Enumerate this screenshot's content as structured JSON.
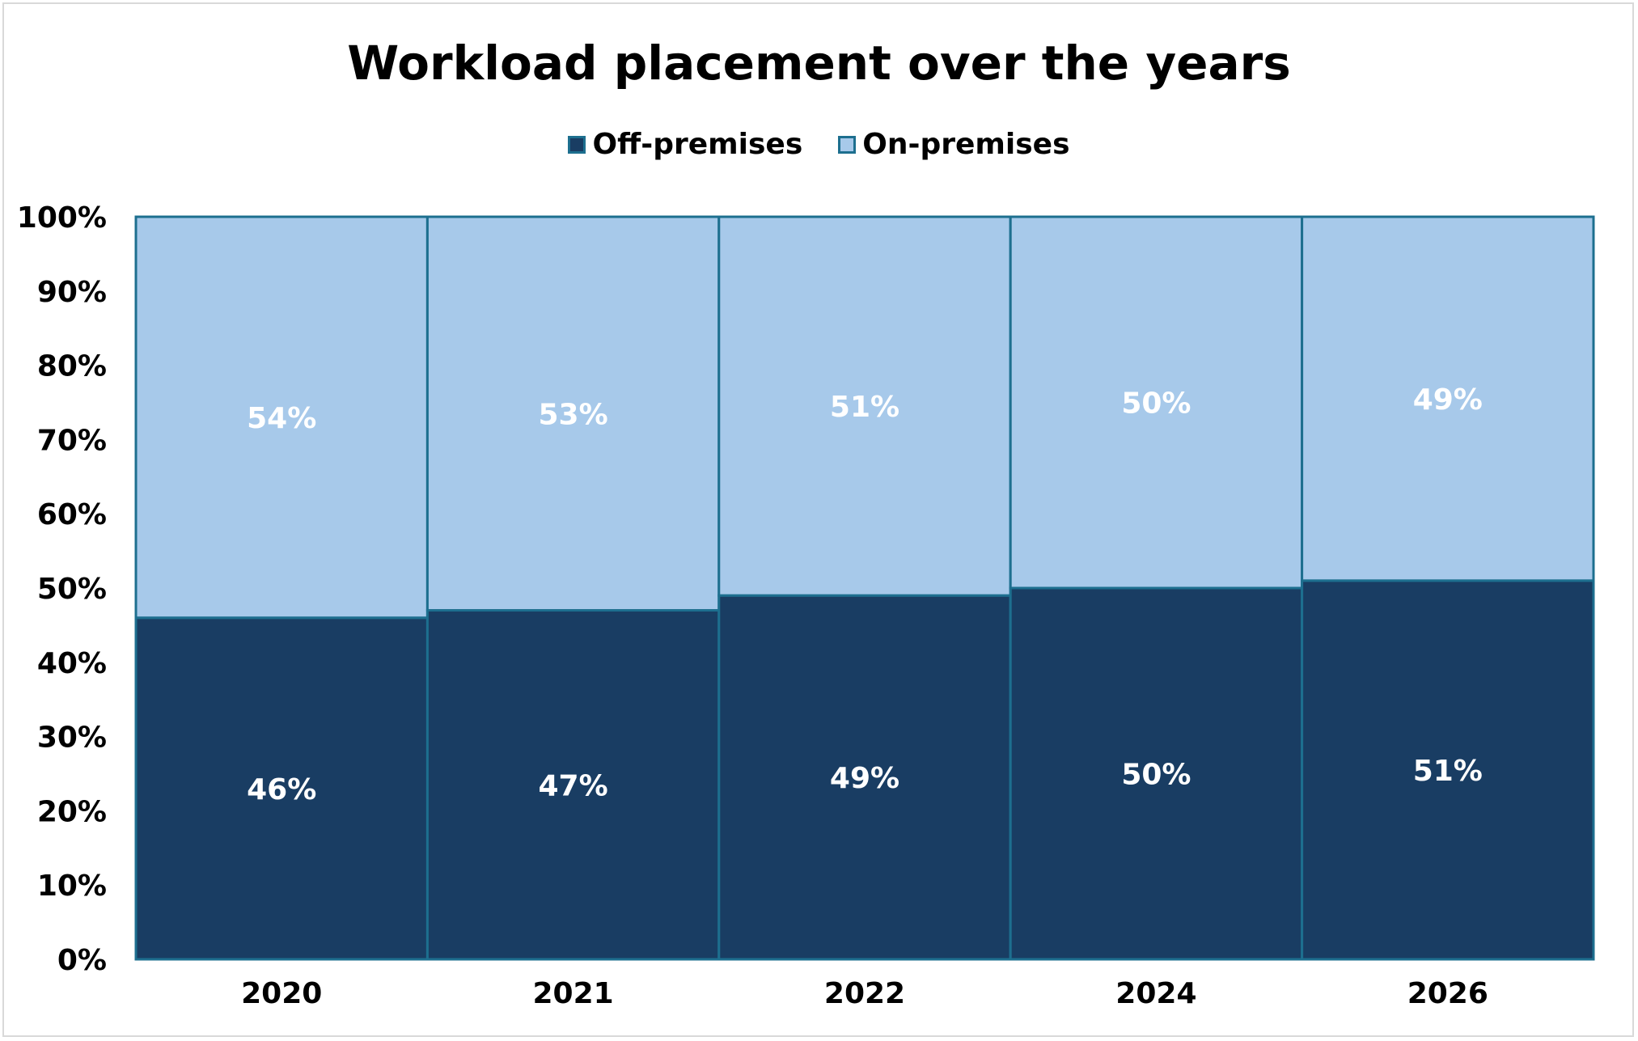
{
  "chart_data": {
    "type": "bar",
    "stacked": true,
    "title": "Workload placement over the years",
    "categories": [
      "2020",
      "2021",
      "2022",
      "2024",
      "2026"
    ],
    "series": [
      {
        "name": "Off-premises",
        "values": [
          46,
          47,
          49,
          50,
          51
        ],
        "labels": [
          "46%",
          "47%",
          "49%",
          "50%",
          "51%"
        ],
        "color": "#193d63"
      },
      {
        "name": "On-premises",
        "values": [
          54,
          53,
          51,
          50,
          49
        ],
        "labels": [
          "54%",
          "53%",
          "51%",
          "50%",
          "49%"
        ],
        "color": "#a7c9ea"
      }
    ],
    "yticks": [
      "0%",
      "10%",
      "20%",
      "30%",
      "40%",
      "50%",
      "60%",
      "70%",
      "80%",
      "90%",
      "100%"
    ],
    "ylim": [
      0,
      100
    ],
    "xlabel": "",
    "ylabel": "",
    "grid": false,
    "legend": "top-center",
    "border_color": "#1d6f8f",
    "label_color": "#ffffff"
  }
}
